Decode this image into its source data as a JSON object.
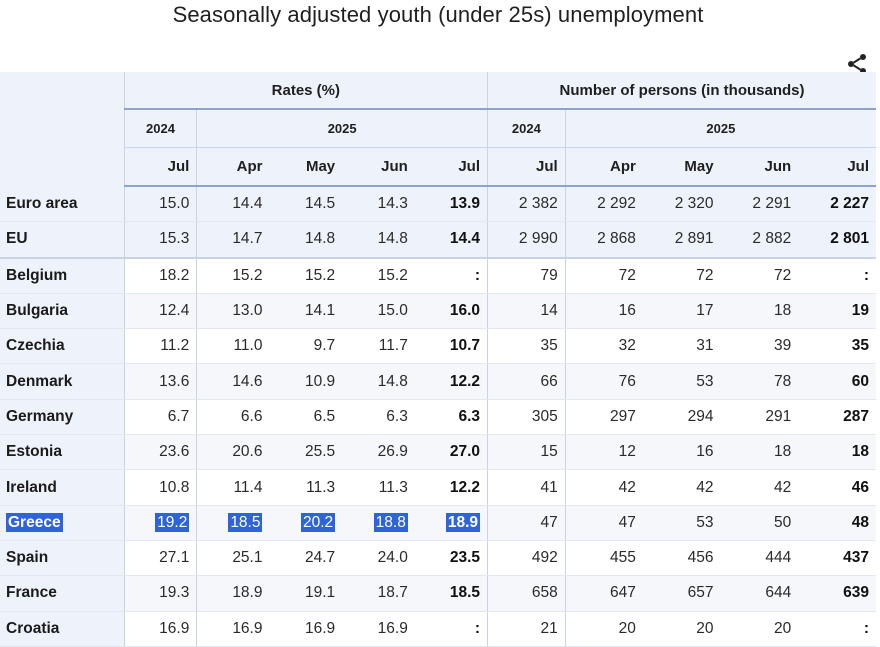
{
  "title": "Seasonally adjusted youth (under 25s) unemployment",
  "icons": {
    "share": "share-icon"
  },
  "chart_data": {
    "type": "table",
    "title": "Seasonally adjusted youth (under 25s) unemployment",
    "groups": [
      "Rates (%)",
      "Number of persons (in thousands)"
    ],
    "years": [
      "2024",
      "2025",
      "2024",
      "2025"
    ],
    "months": [
      "Jul",
      "Apr",
      "May",
      "Jun",
      "Jul",
      "Jul",
      "Apr",
      "May",
      "Jun",
      "Jul"
    ],
    "rows": [
      {
        "label": "Euro area",
        "values": [
          "15.0",
          "14.4",
          "14.5",
          "14.3",
          "13.9",
          "2 382",
          "2 292",
          "2 320",
          "2 291",
          "2 227"
        ]
      },
      {
        "label": "EU",
        "values": [
          "15.3",
          "14.7",
          "14.8",
          "14.8",
          "14.4",
          "2 990",
          "2 868",
          "2 891",
          "2 882",
          "2 801"
        ]
      },
      {
        "label": "Belgium",
        "values": [
          "18.2",
          "15.2",
          "15.2",
          "15.2",
          ":",
          "79",
          "72",
          "72",
          "72",
          ":"
        ]
      },
      {
        "label": "Bulgaria",
        "values": [
          "12.4",
          "13.0",
          "14.1",
          "15.0",
          "16.0",
          "14",
          "16",
          "17",
          "18",
          "19"
        ]
      },
      {
        "label": "Czechia",
        "values": [
          "11.2",
          "11.0",
          "9.7",
          "11.7",
          "10.7",
          "35",
          "32",
          "31",
          "39",
          "35"
        ]
      },
      {
        "label": "Denmark",
        "values": [
          "13.6",
          "14.6",
          "10.9",
          "14.8",
          "12.2",
          "66",
          "76",
          "53",
          "78",
          "60"
        ]
      },
      {
        "label": "Germany",
        "values": [
          "6.7",
          "6.6",
          "6.5",
          "6.3",
          "6.3",
          "305",
          "297",
          "294",
          "291",
          "287"
        ]
      },
      {
        "label": "Estonia",
        "values": [
          "23.6",
          "20.6",
          "25.5",
          "26.9",
          "27.0",
          "15",
          "12",
          "16",
          "18",
          "18"
        ]
      },
      {
        "label": "Ireland",
        "values": [
          "10.8",
          "11.4",
          "11.3",
          "11.3",
          "12.2",
          "41",
          "42",
          "42",
          "42",
          "46"
        ]
      },
      {
        "label": "Greece",
        "values": [
          "19.2",
          "18.5",
          "20.2",
          "18.8",
          "18.9",
          "47",
          "47",
          "53",
          "50",
          "48"
        ]
      },
      {
        "label": "Spain",
        "values": [
          "27.1",
          "25.1",
          "24.7",
          "24.0",
          "23.5",
          "492",
          "455",
          "456",
          "444",
          "437"
        ]
      },
      {
        "label": "France",
        "values": [
          "19.3",
          "18.9",
          "19.1",
          "18.7",
          "18.5",
          "658",
          "647",
          "657",
          "644",
          "639"
        ]
      },
      {
        "label": "Croatia",
        "values": [
          "16.9",
          "16.9",
          "16.9",
          "16.9",
          ":",
          "21",
          "20",
          "20",
          "20",
          ":"
        ]
      }
    ]
  }
}
